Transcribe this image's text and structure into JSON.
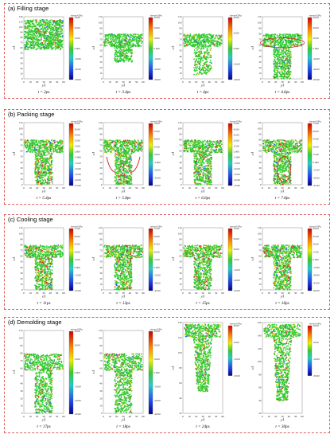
{
  "figure": {
    "colors": {
      "border": "#e06060",
      "particle_green": "#33cc33",
      "particle_yellow": "#cccc22",
      "particle_red": "#dd3322",
      "particle_blue": "#2266dd"
    },
    "stages": [
      {
        "title": "(a) Filling stage",
        "panels": [
          {
            "label": "t = 2ps",
            "cb_title": "stress/GPa",
            "cb_ticks": [
              "30.00",
              "20.00",
              "10.00",
              "0.000",
              "-10.00",
              "-20.00",
              "-30.00"
            ],
            "xticks": [
              "0",
              "10",
              "20",
              "30",
              "40",
              "50",
              "60"
            ],
            "yticks": [
              "120",
              "110",
              "100",
              "90",
              "80",
              "70",
              "60",
              "50",
              "40",
              "30",
              "20",
              "10",
              "0"
            ],
            "xlabel": "y/Å",
            "ylabel": "z/Å",
            "shape": "block"
          },
          {
            "label": "t = 3.4ps",
            "cb_title": "stress/GPa",
            "cb_ticks": [
              "30.00",
              "20.00",
              "10.00",
              "0.000",
              "-10.00",
              "-20.00",
              "-30.00"
            ],
            "xticks": [
              "0",
              "10",
              "20",
              "30",
              "40",
              "50",
              "60"
            ],
            "yticks": [
              "110",
              "100",
              "90",
              "80",
              "70",
              "60",
              "50",
              "40",
              "30",
              "20",
              "10",
              "0"
            ],
            "xlabel": "y/Å",
            "ylabel": "z/Å",
            "shape": "tshort"
          },
          {
            "label": "t = 4ps",
            "cb_title": "stress/GPa",
            "cb_ticks": [
              "40.00",
              "20.00",
              "0.000",
              "-20.00",
              "-40.00"
            ],
            "xticks": [
              "0",
              "10",
              "20",
              "30",
              "40",
              "50",
              "60"
            ],
            "yticks": [
              "110",
              "100",
              "90",
              "80",
              "70",
              "60",
              "50",
              "40",
              "30",
              "20",
              "10",
              "0"
            ],
            "xlabel": "y/Å",
            "ylabel": "z/Å",
            "shape": "tmid"
          },
          {
            "label": "t = 4.6ps",
            "cb_title": "stress/GPa",
            "cb_ticks": [
              "60.00",
              "40.00",
              "20.00",
              "0.000",
              "-20.00",
              "-40.00",
              "-60.00"
            ],
            "xticks": [
              "0",
              "10",
              "20",
              "30",
              "40",
              "50",
              "60"
            ],
            "yticks": [
              "110",
              "100",
              "90",
              "80",
              "70",
              "60",
              "50",
              "40",
              "30",
              "20",
              "10",
              "0"
            ],
            "xlabel": "y/Å",
            "ylabel": "z/Å",
            "shape": "tfull",
            "marker": "ellipse-top"
          }
        ]
      },
      {
        "title": "(b) Packing stage",
        "panels": [
          {
            "label": "t = 5.4ps",
            "cb_title": "stress/GPa",
            "cb_ticks": [
              "55.00",
              "45.00",
              "35.00",
              "25.00",
              "15.00",
              "5.000",
              "-5.000",
              "-15.00",
              "-25.00",
              "-35.00",
              "-45.00",
              "-55.00"
            ],
            "xticks": [
              "0",
              "10",
              "20",
              "30",
              "40",
              "50",
              "60"
            ],
            "yticks": [
              "110",
              "100",
              "90",
              "80",
              "70",
              "60",
              "50",
              "40",
              "30",
              "20",
              "10",
              "0"
            ],
            "xlabel": "y/Å",
            "ylabel": "z/Å",
            "shape": "tfull"
          },
          {
            "label": "t = 5.8ps",
            "cb_title": "stress/GPa",
            "cb_ticks": [
              "70.00",
              "55.00",
              "40.00",
              "25.00",
              "10.00",
              "-5.000",
              "-20.00",
              "-35.00",
              "-50.00"
            ],
            "xticks": [
              "0",
              "10",
              "20",
              "30",
              "40",
              "50",
              "60"
            ],
            "yticks": [
              "110",
              "100",
              "90",
              "80",
              "70",
              "60",
              "50",
              "40",
              "30",
              "20",
              "10",
              "0"
            ],
            "xlabel": "y/Å",
            "ylabel": "z/Å",
            "shape": "tfull",
            "marker": "arrows"
          },
          {
            "label": "t = 6.6ps",
            "cb_title": "stress/GPa",
            "cb_ticks": [
              "55.00",
              "45.00",
              "35.00",
              "25.00",
              "15.00",
              "5.000",
              "-5.000",
              "-15.00",
              "-25.00",
              "-35.00",
              "-45.00",
              "-55.00"
            ],
            "xticks": [
              "0",
              "10",
              "20",
              "30",
              "40",
              "50",
              "60"
            ],
            "yticks": [
              "110",
              "100",
              "90",
              "80",
              "70",
              "60",
              "50",
              "40",
              "30",
              "20",
              "10",
              "0"
            ],
            "xlabel": "y/Å",
            "ylabel": "z/Å",
            "shape": "tfull"
          },
          {
            "label": "t = 7.8ps",
            "cb_title": "stress/GPa",
            "cb_ticks": [
              "75.00",
              "60.00",
              "45.00",
              "30.00",
              "15.00",
              "0.000",
              "-15.00",
              "-30.00",
              "-45.00"
            ],
            "xticks": [
              "0",
              "10",
              "20",
              "30",
              "40",
              "50",
              "60"
            ],
            "yticks": [
              "110",
              "100",
              "90",
              "80",
              "70",
              "60",
              "50",
              "40",
              "30",
              "20",
              "10",
              "0"
            ],
            "xlabel": "y/Å",
            "ylabel": "z/Å",
            "shape": "tfull",
            "marker": "ellipse-stem"
          }
        ]
      },
      {
        "title": "(c) Cooling stage",
        "panels": [
          {
            "label": "t = 11ps",
            "cb_title": "stress/GPa",
            "cb_ticks": [
              "75.00",
              "60.00",
              "45.00",
              "30.00",
              "15.00",
              "0.000",
              "-15.00",
              "-30.00",
              "-45.00"
            ],
            "xticks": [
              "0",
              "10",
              "20",
              "30",
              "40",
              "50",
              "60"
            ],
            "yticks": [
              "110",
              "100",
              "90",
              "80",
              "70",
              "60",
              "50",
              "40",
              "30",
              "20",
              "10",
              "0"
            ],
            "xlabel": "y/Å",
            "ylabel": "z/Å",
            "shape": "tfull"
          },
          {
            "label": "t = 13ps",
            "cb_title": "stress/GPa",
            "cb_ticks": [
              "75.00",
              "60.00",
              "45.00",
              "30.00",
              "15.00",
              "0.000",
              "-15.00",
              "-30.00",
              "-45.00"
            ],
            "xticks": [
              "0",
              "10",
              "20",
              "30",
              "40",
              "50",
              "60"
            ],
            "yticks": [
              "110",
              "100",
              "90",
              "80",
              "70",
              "60",
              "50",
              "40",
              "30",
              "20",
              "10",
              "0"
            ],
            "xlabel": "y/Å",
            "ylabel": "z/Å",
            "shape": "tfull"
          },
          {
            "label": "t = 15ps",
            "cb_title": "stress/GPa",
            "cb_ticks": [
              "70.00",
              "50.00",
              "30.00",
              "10.00",
              "-10.00",
              "-30.00",
              "-50.00"
            ],
            "xticks": [
              "0",
              "10",
              "20",
              "30",
              "40",
              "50",
              "60"
            ],
            "yticks": [
              "110",
              "100",
              "90",
              "80",
              "70",
              "60",
              "50",
              "40",
              "30",
              "20",
              "10",
              "0"
            ],
            "xlabel": "y/Å",
            "ylabel": "z/Å",
            "shape": "tfull"
          },
          {
            "label": "t = 16ps",
            "cb_title": "stress/GPa",
            "cb_ticks": [
              "60.00",
              "45.00",
              "30.00",
              "15.00",
              "0.000",
              "-15.00",
              "-30.00",
              "-45.00",
              "-60.00"
            ],
            "xticks": [
              "0",
              "10",
              "20",
              "30",
              "40",
              "50",
              "60"
            ],
            "yticks": [
              "110",
              "100",
              "90",
              "80",
              "70",
              "60",
              "50",
              "40",
              "30",
              "20",
              "10",
              "0"
            ],
            "xlabel": "y/Å",
            "ylabel": "z/Å",
            "shape": "tfull"
          }
        ]
      },
      {
        "title": "(d) Demolding stage",
        "panels": [
          {
            "label": "t = 17ps",
            "cb_title": "stress/GPa",
            "cb_ticks": [
              "30.00",
              "20.00",
              "10.00",
              "0.000",
              "-10.00",
              "-20.00",
              "-30.00"
            ],
            "xticks": [
              "0",
              "10",
              "20",
              "30",
              "40",
              "50",
              "60"
            ],
            "yticks": [
              "110",
              "100",
              "90",
              "80",
              "70",
              "60",
              "50",
              "40",
              "30",
              "20",
              "10",
              "0"
            ],
            "xlabel": "y/Å",
            "ylabel": "z/Å",
            "shape": "tfull"
          },
          {
            "label": "t = 18ps",
            "cb_title": "stress/GPa",
            "cb_ticks": [
              "30.00",
              "20.00",
              "10.00",
              "0.000",
              "-10.00",
              "-20.00",
              "-30.00"
            ],
            "xticks": [
              "0",
              "10",
              "20",
              "30",
              "40",
              "50",
              "60"
            ],
            "yticks": [
              "110",
              "100",
              "90",
              "80",
              "70",
              "60",
              "50",
              "40",
              "30",
              "20",
              "10",
              "0"
            ],
            "xlabel": "y/Å",
            "ylabel": "z/Å",
            "shape": "tfull"
          },
          {
            "label": "t = 24ps",
            "cb_title": "stress/GPa",
            "cb_ticks": [
              "30.00",
              "10.00",
              "-10.00",
              "-30.00"
            ],
            "xticks": [
              "0",
              "10",
              "20",
              "30",
              "40",
              "50",
              "60"
            ],
            "yticks": [
              "140",
              "120",
              "100",
              "80",
              "60",
              "40",
              "20"
            ],
            "xlabel": "y/Å",
            "ylabel": "z/Å",
            "shape": "pulled"
          },
          {
            "label": "t = 30ps",
            "cb_title": "stress/GPa",
            "cb_ticks": [
              "30.00",
              "10.00",
              "-10.00",
              "-30.00"
            ],
            "xticks": [
              "0",
              "10",
              "20",
              "30",
              "40",
              "50",
              "60"
            ],
            "yticks": [
              "160",
              "140",
              "120",
              "100",
              "80",
              "60",
              "40",
              "20"
            ],
            "xlabel": "y/Å",
            "ylabel": "z/Å",
            "shape": "pulledlong"
          }
        ]
      }
    ]
  }
}
